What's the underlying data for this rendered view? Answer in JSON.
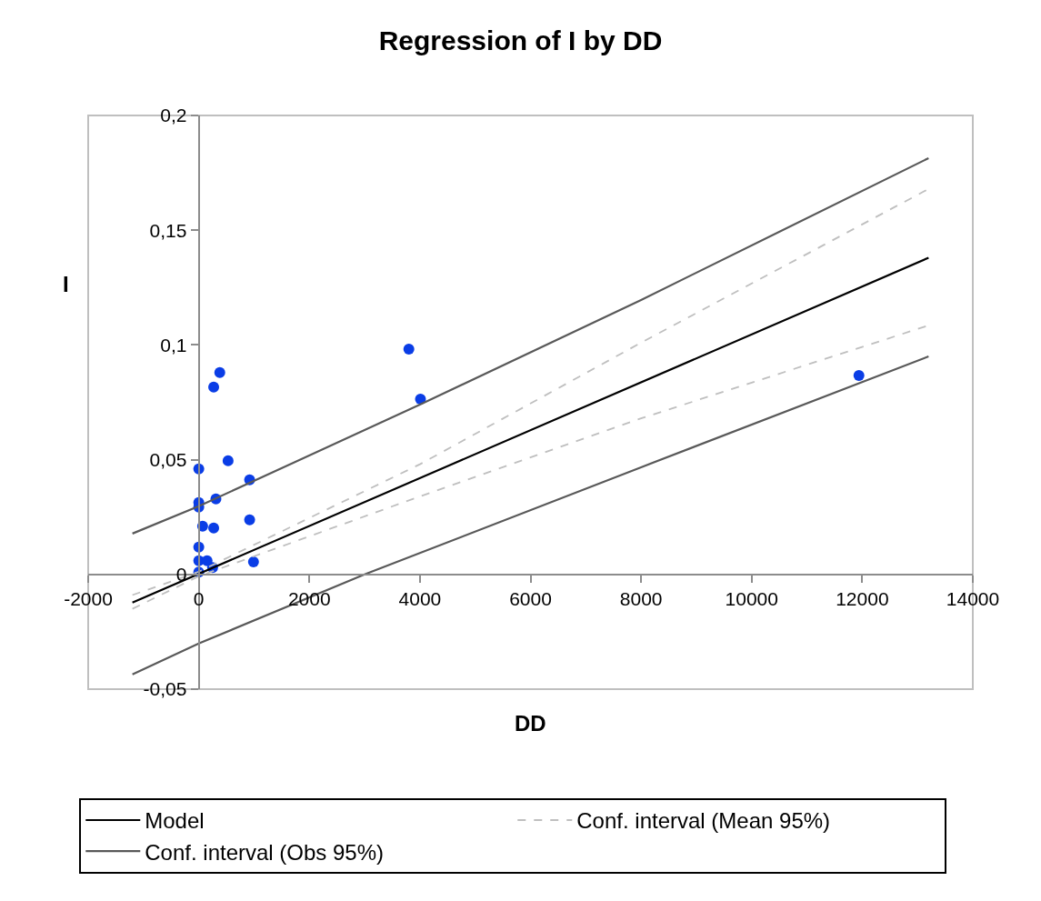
{
  "chart_data": {
    "type": "scatter",
    "title": "Regression of I by DD",
    "xlabel": "DD",
    "ylabel": "I",
    "xlim": [
      -2000,
      14000
    ],
    "xticks": [
      -2000,
      0,
      2000,
      4000,
      6000,
      8000,
      10000,
      12000,
      14000
    ],
    "ylim": [
      -0.05,
      0.2
    ],
    "yticks": [
      {
        "value": -0.05,
        "label": "-0,05"
      },
      0,
      {
        "value": 0.05,
        "label": "0,05"
      },
      {
        "value": 0.1,
        "label": "0,1"
      },
      {
        "value": 0.15,
        "label": "0,15"
      },
      {
        "value": 0.2,
        "label": "0,2"
      }
    ],
    "grid": false,
    "legend": "bottom",
    "series": [
      {
        "color": "#0a3de6",
        "marker": "circle",
        "x": [
          380,
          270,
          530,
          0,
          920,
          310,
          0,
          0,
          920,
          70,
          270,
          0,
          990,
          0,
          0,
          150,
          250,
          3800,
          4010,
          11940
        ],
        "values": [
          0.088,
          0.0816,
          0.0495,
          0.046,
          0.0412,
          0.0329,
          0.0313,
          0.0293,
          0.0238,
          0.021,
          0.0202,
          0.0119,
          0.0055,
          0.006,
          0.001,
          0.006,
          0.003,
          0.0982,
          0.0764,
          0.0867
        ]
      },
      {
        "type": "line",
        "name": "Model",
        "color": "#000000",
        "marker": "none",
        "line_style": "solid",
        "x": [
          -1200,
          13200
        ],
        "values": [
          -0.0123,
          0.138
        ]
      },
      {
        "type": "line",
        "name": "Conf. interval (Mean 95%)",
        "color": "#bfbfbf",
        "marker": "none",
        "line_style": "dashed",
        "x": [
          -1200,
          0,
          4000,
          8000,
          13200
        ],
        "values": [
          -0.009,
          0.0012,
          0.048,
          0.101,
          0.168
        ]
      },
      {
        "type": "line",
        "color": "#bfbfbf",
        "marker": "none",
        "line_style": "dashed",
        "x": [
          -1200,
          0,
          4000,
          8000,
          13200
        ],
        "values": [
          -0.015,
          -0.0008,
          0.034,
          0.068,
          0.1085
        ]
      },
      {
        "type": "line",
        "name": "Conf. interval (Obs 95%)",
        "color": "#595959",
        "marker": "none",
        "line_style": "solid",
        "x": [
          -1200,
          0,
          4000,
          8000,
          13200
        ],
        "values": [
          0.0178,
          0.0297,
          0.074,
          0.1196,
          0.1814
        ]
      },
      {
        "type": "line",
        "color": "#595959",
        "marker": "none",
        "line_style": "solid",
        "x": [
          -1200,
          0,
          3000,
          8000,
          13200
        ],
        "values": [
          -0.0436,
          -0.0301,
          0.0,
          0.0467,
          0.095
        ]
      }
    ]
  }
}
